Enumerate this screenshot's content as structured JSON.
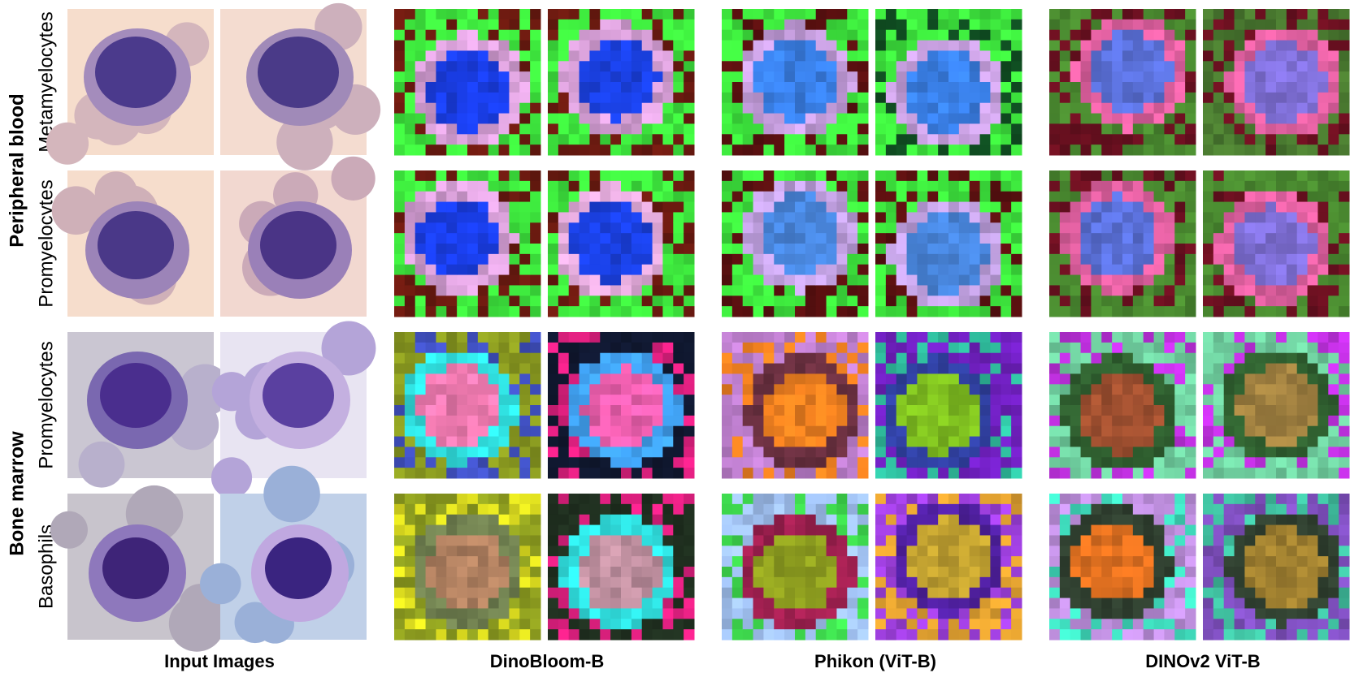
{
  "figure": {
    "groups": [
      "Peripheral blood",
      "Bone marrow"
    ],
    "rows": [
      "Metamyelocytes",
      "Promyelocytes",
      "Promyelocytes",
      "Basophils"
    ],
    "columns": [
      "Input Images",
      "DinoBloom-B",
      "Phikon (ViT-B)",
      "DINOv2 ViT-B"
    ]
  }
}
